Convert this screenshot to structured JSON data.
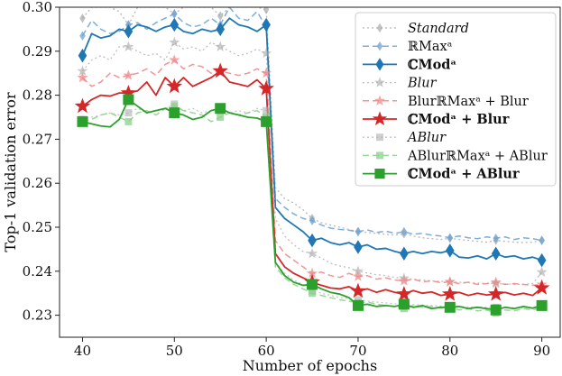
{
  "chart_data": {
    "type": "line",
    "xlabel": "Number of epochs",
    "ylabel": "Top-1 validation error",
    "xlim": [
      37.5,
      92.0
    ],
    "ylim": [
      0.225,
      0.3
    ],
    "xticks": [
      "40",
      "50",
      "60",
      "70",
      "80",
      "90"
    ],
    "yticks": [
      "0.23",
      "0.24",
      "0.25",
      "0.26",
      "0.27",
      "0.28",
      "0.29",
      "0.30"
    ],
    "grid": false,
    "legend_position": "top-right",
    "x": [
      40,
      41,
      42,
      43,
      44,
      45,
      46,
      47,
      48,
      49,
      50,
      51,
      52,
      53,
      54,
      55,
      56,
      57,
      58,
      59,
      60,
      61,
      62,
      63,
      64,
      65,
      66,
      67,
      68,
      69,
      70,
      71,
      72,
      73,
      74,
      75,
      76,
      77,
      78,
      79,
      80,
      81,
      82,
      83,
      84,
      85,
      86,
      87,
      88,
      89,
      90
    ],
    "series": [
      {
        "name": "Standard",
        "color": "#a0a0a0",
        "style": "dotted",
        "marker": "diamond",
        "width": 1.3,
        "alpha": 0.75,
        "values": [
          0.2975,
          0.3,
          0.3,
          0.3,
          0.299,
          0.296,
          0.3,
          0.3,
          0.3,
          0.3,
          0.2985,
          0.3,
          0.3,
          0.3,
          0.3,
          0.298,
          0.3,
          0.3,
          0.3,
          0.3,
          0.2995,
          0.259,
          0.2565,
          0.2555,
          0.254,
          0.252,
          0.251,
          0.2505,
          0.25,
          0.2495,
          0.249,
          0.2488,
          0.2486,
          0.2484,
          0.2482,
          0.2485,
          0.248,
          0.2476,
          0.2474,
          0.2472,
          0.2475,
          0.2472,
          0.247,
          0.2468,
          0.2466,
          0.247,
          0.2468,
          0.2466,
          0.2465,
          0.2466,
          0.247
        ]
      },
      {
        "name": "ℝMax^a",
        "color": "#6fa5d6",
        "style": "dashed",
        "marker": "diamond",
        "width": 1.5,
        "alpha": 0.9,
        "values": [
          0.2935,
          0.297,
          0.295,
          0.294,
          0.2945,
          0.296,
          0.2965,
          0.295,
          0.2965,
          0.2975,
          0.2985,
          0.2965,
          0.2955,
          0.296,
          0.2975,
          0.296,
          0.3,
          0.2975,
          0.297,
          0.299,
          0.2955,
          0.2565,
          0.2545,
          0.253,
          0.252,
          0.2515,
          0.2505,
          0.2498,
          0.2495,
          0.2493,
          0.249,
          0.2494,
          0.2488,
          0.2491,
          0.2486,
          0.249,
          0.2484,
          0.2486,
          0.2482,
          0.248,
          0.2476,
          0.248,
          0.2476,
          0.2474,
          0.2478,
          0.2475,
          0.2478,
          0.2472,
          0.2476,
          0.2474,
          0.247
        ]
      },
      {
        "name": "ℂMod^a",
        "color": "#1f77b4",
        "style": "solid",
        "marker": "diamond",
        "width": 1.8,
        "alpha": 1,
        "values": [
          0.289,
          0.294,
          0.293,
          0.2935,
          0.295,
          0.2945,
          0.296,
          0.2955,
          0.2945,
          0.2955,
          0.296,
          0.2945,
          0.294,
          0.295,
          0.2945,
          0.295,
          0.2975,
          0.296,
          0.2955,
          0.2945,
          0.296,
          0.2545,
          0.252,
          0.2505,
          0.249,
          0.247,
          0.2475,
          0.2465,
          0.246,
          0.2465,
          0.2455,
          0.246,
          0.245,
          0.2452,
          0.2445,
          0.244,
          0.2445,
          0.244,
          0.2445,
          0.2442,
          0.2447,
          0.2432,
          0.243,
          0.2435,
          0.2428,
          0.244,
          0.2432,
          0.2435,
          0.2428,
          0.2432,
          0.2425
        ]
      },
      {
        "name": "Blur",
        "color": "#aaaaaa",
        "style": "dotted",
        "marker": "star",
        "width": 1.3,
        "alpha": 0.75,
        "values": [
          0.2855,
          0.288,
          0.289,
          0.288,
          0.291,
          0.291,
          0.29,
          0.289,
          0.2895,
          0.288,
          0.292,
          0.2905,
          0.291,
          0.29,
          0.292,
          0.291,
          0.29,
          0.289,
          0.2895,
          0.2905,
          0.2895,
          0.252,
          0.248,
          0.246,
          0.2445,
          0.244,
          0.243,
          0.2418,
          0.2412,
          0.2408,
          0.24,
          0.2396,
          0.2392,
          0.239,
          0.2386,
          0.2384,
          0.2382,
          0.238,
          0.2378,
          0.2377,
          0.2376,
          0.2375,
          0.2374,
          0.2373,
          0.2372,
          0.2372,
          0.2371,
          0.237,
          0.237,
          0.2372,
          0.2398
        ]
      },
      {
        "name": "BlurℝMax^a + Blur",
        "color": "#f08a8a",
        "style": "dashed",
        "marker": "star",
        "width": 1.5,
        "alpha": 0.9,
        "values": [
          0.284,
          0.282,
          0.283,
          0.285,
          0.284,
          0.2845,
          0.285,
          0.286,
          0.2845,
          0.287,
          0.288,
          0.286,
          0.287,
          0.2865,
          0.285,
          0.2855,
          0.285,
          0.2845,
          0.285,
          0.286,
          0.285,
          0.247,
          0.244,
          0.2425,
          0.241,
          0.2395,
          0.2398,
          0.239,
          0.2386,
          0.2395,
          0.2388,
          0.239,
          0.2382,
          0.2385,
          0.238,
          0.2378,
          0.2382,
          0.2376,
          0.2378,
          0.2374,
          0.2376,
          0.2372,
          0.2375,
          0.237,
          0.2372,
          0.2375,
          0.237,
          0.2372,
          0.237,
          0.2368,
          0.237
        ]
      },
      {
        "name": "ℂMod^a + Blur",
        "color": "#d62728",
        "style": "solid",
        "marker": "star",
        "width": 1.8,
        "alpha": 1,
        "values": [
          0.2775,
          0.279,
          0.28,
          0.2798,
          0.2805,
          0.2805,
          0.281,
          0.283,
          0.28,
          0.284,
          0.282,
          0.284,
          0.282,
          0.283,
          0.284,
          0.2855,
          0.283,
          0.2825,
          0.282,
          0.2835,
          0.2815,
          0.244,
          0.241,
          0.2395,
          0.2385,
          0.2375,
          0.2368,
          0.2362,
          0.236,
          0.2365,
          0.2355,
          0.236,
          0.2352,
          0.2358,
          0.2352,
          0.2348,
          0.2356,
          0.235,
          0.2353,
          0.2345,
          0.2348,
          0.2352,
          0.2345,
          0.235,
          0.2346,
          0.2348,
          0.2352,
          0.2346,
          0.235,
          0.2345,
          0.2362
        ]
      },
      {
        "name": "ABlur",
        "color": "#b4b4b4",
        "style": "dotted",
        "marker": "square",
        "width": 1.3,
        "alpha": 0.75,
        "values": [
          0.2745,
          0.275,
          0.2755,
          0.276,
          0.2755,
          0.276,
          0.277,
          0.276,
          0.2765,
          0.277,
          0.278,
          0.2765,
          0.277,
          0.276,
          0.2765,
          0.277,
          0.276,
          0.2765,
          0.276,
          0.277,
          0.2765,
          0.242,
          0.2395,
          0.238,
          0.237,
          0.2355,
          0.235,
          0.2345,
          0.234,
          0.2338,
          0.2335,
          0.2332,
          0.233,
          0.2328,
          0.2326,
          0.2325,
          0.2324,
          0.2323,
          0.2322,
          0.2321,
          0.232,
          0.232,
          0.2319,
          0.2318,
          0.2318,
          0.2318,
          0.2317,
          0.2317,
          0.2316,
          0.2316,
          0.2325
        ]
      },
      {
        "name": "ABlurℝMax^a + ABlur",
        "color": "#8fd18f",
        "style": "dashed",
        "marker": "square",
        "width": 1.5,
        "alpha": 0.9,
        "values": [
          0.274,
          0.2745,
          0.2755,
          0.276,
          0.275,
          0.274,
          0.276,
          0.2765,
          0.2755,
          0.277,
          0.2775,
          0.2765,
          0.276,
          0.2755,
          0.274,
          0.275,
          0.276,
          0.2755,
          0.276,
          0.2765,
          0.275,
          0.241,
          0.2385,
          0.237,
          0.236,
          0.235,
          0.2345,
          0.234,
          0.2335,
          0.2332,
          0.2328,
          0.233,
          0.2325,
          0.2322,
          0.232,
          0.2315,
          0.2322,
          0.2318,
          0.232,
          0.2316,
          0.2318,
          0.2312,
          0.2315,
          0.231,
          0.2312,
          0.2305,
          0.2312,
          0.231,
          0.2315,
          0.2312,
          0.2318
        ]
      },
      {
        "name": "ℂMod^a + ABlur",
        "color": "#2ca02c",
        "style": "solid",
        "marker": "square",
        "width": 1.8,
        "alpha": 1,
        "values": [
          0.274,
          0.2735,
          0.273,
          0.2728,
          0.2745,
          0.279,
          0.2775,
          0.276,
          0.2765,
          0.277,
          0.276,
          0.2755,
          0.2745,
          0.275,
          0.2765,
          0.277,
          0.276,
          0.2755,
          0.275,
          0.2748,
          0.274,
          0.242,
          0.239,
          0.2375,
          0.2368,
          0.237,
          0.236,
          0.2352,
          0.2348,
          0.234,
          0.2322,
          0.2325,
          0.232,
          0.2322,
          0.232,
          0.2325,
          0.2318,
          0.2322,
          0.2315,
          0.2318,
          0.2318,
          0.232,
          0.2315,
          0.2318,
          0.2315,
          0.2312,
          0.2318,
          0.2315,
          0.232,
          0.2316,
          0.2322
        ]
      }
    ],
    "legend": [
      {
        "label": "Standard",
        "bold": false,
        "italic": true
      },
      {
        "label": "ℝMaxᵃ",
        "bold": false,
        "italic": false
      },
      {
        "label": "ℂModᵃ",
        "bold": true,
        "italic": false
      },
      {
        "label": "Blur",
        "bold": false,
        "italic": true
      },
      {
        "label": "BlurℝMaxᵃ + Blur",
        "bold": false,
        "italic": false
      },
      {
        "label": "ℂModᵃ + Blur",
        "bold": true,
        "italic": false
      },
      {
        "label": "ABlur",
        "bold": false,
        "italic": true
      },
      {
        "label": "ABlurℝMaxᵃ + ABlur",
        "bold": false,
        "italic": false
      },
      {
        "label": "ℂModᵃ + ABlur",
        "bold": true,
        "italic": false
      }
    ]
  }
}
